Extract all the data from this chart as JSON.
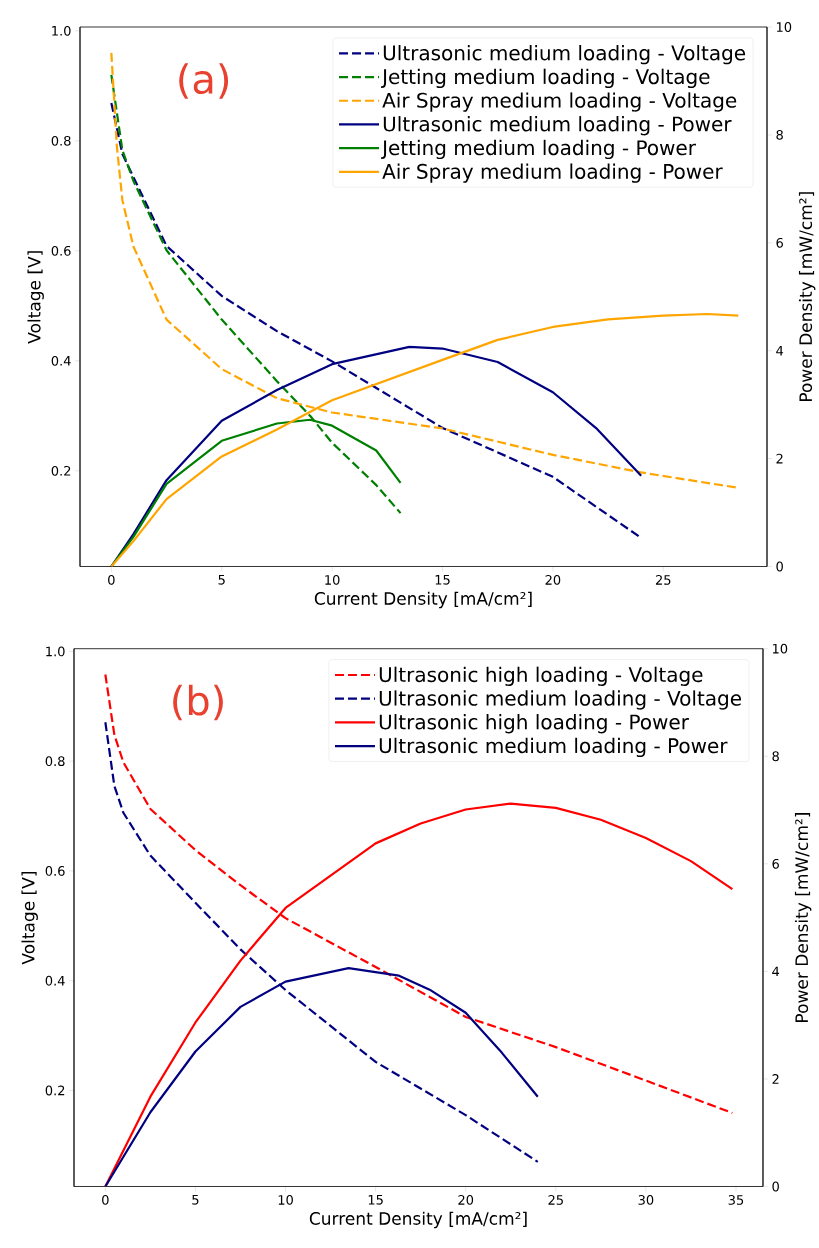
{
  "chart_data": [
    {
      "type": "line",
      "xlabel": "Current Density [mA/cm²]",
      "ylabel": "Voltage [V]",
      "y2label": "Power Density [mW/cm²]",
      "annotations": [
        "(a)"
      ],
      "xlim": [
        -1.42,
        29.7
      ],
      "ylim": [
        0.026,
        1.007
      ],
      "y2lim": [
        0,
        10
      ],
      "xticks": [
        0,
        5,
        10,
        15,
        20,
        25
      ],
      "yticks": [
        {
          "value": 0.2,
          "label": "0.2"
        },
        {
          "value": 0.4,
          "label": "0.4"
        },
        {
          "value": 0.6,
          "label": "0.6"
        },
        {
          "value": 0.8,
          "label": "0.8"
        },
        {
          "value": 1.0,
          "label": "1.0"
        }
      ],
      "y2ticks": [
        0,
        2,
        4,
        6,
        8,
        10
      ],
      "legend": "top right",
      "series": [
        {
          "name": "Ultrasonic medium loading - Voltage",
          "color": "#000080",
          "axis": "y",
          "line_style": "dashed",
          "x": [
            0,
            0.5,
            1,
            2.5,
            5,
            7.5,
            10,
            15,
            20,
            24
          ],
          "values": [
            0.869,
            0.776,
            0.734,
            0.609,
            0.518,
            0.454,
            0.399,
            0.278,
            0.189,
            0.078
          ]
        },
        {
          "name": "Jetting medium loading - Voltage",
          "color": "#008000",
          "axis": "y",
          "line_style": "dashed",
          "x": [
            0,
            0.5,
            1,
            2.5,
            5,
            7.5,
            9,
            10,
            12,
            13.1
          ],
          "values": [
            0.92,
            0.783,
            0.727,
            0.601,
            0.475,
            0.363,
            0.3,
            0.251,
            0.174,
            0.123
          ]
        },
        {
          "name": "Air Spray medium loading - Voltage",
          "color": "#ffa500",
          "axis": "y",
          "line_style": "dashed",
          "x": [
            0,
            0.25,
            0.5,
            1,
            2.5,
            5,
            7.5,
            10,
            15,
            20,
            24,
            28.4
          ],
          "values": [
            0.96,
            0.79,
            0.692,
            0.608,
            0.475,
            0.385,
            0.332,
            0.306,
            0.277,
            0.229,
            0.197,
            0.169
          ]
        },
        {
          "name": "Ultrasonic medium loading - Power",
          "color": "#000080",
          "axis": "y2",
          "line_style": "solid",
          "x": [
            0,
            1,
            2.5,
            5,
            7.5,
            10,
            13.5,
            15,
            17.5,
            20,
            22,
            24
          ],
          "values": [
            0,
            0.6,
            1.6,
            2.7,
            3.27,
            3.75,
            4.07,
            4.04,
            3.79,
            3.23,
            2.55,
            1.68
          ]
        },
        {
          "name": "Jetting medium loading - Power",
          "color": "#008000",
          "axis": "y2",
          "line_style": "solid",
          "x": [
            0,
            1,
            2.5,
            5,
            7.5,
            9,
            10,
            12,
            13.1
          ],
          "values": [
            0,
            0.55,
            1.53,
            2.33,
            2.65,
            2.72,
            2.61,
            2.15,
            1.55
          ]
        },
        {
          "name": "Air Spray medium loading - Power",
          "color": "#ffa500",
          "axis": "y2",
          "line_style": "solid",
          "x": [
            0,
            1,
            2.5,
            5,
            7.5,
            10,
            15,
            17.5,
            20,
            22.5,
            25,
            27,
            28.4
          ],
          "values": [
            0,
            0.47,
            1.25,
            2.04,
            2.54,
            3.08,
            3.83,
            4.2,
            4.44,
            4.58,
            4.65,
            4.68,
            4.65
          ]
        }
      ]
    },
    {
      "type": "line",
      "xlabel": "Current Density [mA/cm²]",
      "ylabel": "Voltage [V]",
      "y2label": "Power Density [mW/cm²]",
      "annotations": [
        "(b)"
      ],
      "xlim": [
        -1.74,
        36.5
      ],
      "ylim": [
        0.025,
        1.005
      ],
      "y2lim": [
        0,
        10
      ],
      "xticks": [
        0,
        5,
        10,
        15,
        20,
        25,
        30,
        35
      ],
      "yticks": [
        {
          "value": 0.2,
          "label": "0.2"
        },
        {
          "value": 0.4,
          "label": "0.4"
        },
        {
          "value": 0.6,
          "label": "0.6"
        },
        {
          "value": 0.8,
          "label": "0.8"
        },
        {
          "value": 1.0,
          "label": "1.0"
        }
      ],
      "y2ticks": [
        0,
        2,
        4,
        6,
        8,
        10
      ],
      "legend": "top right",
      "series": [
        {
          "name": "Ultrasonic high loading - Voltage",
          "color": "#ff0000",
          "axis": "y",
          "line_style": "dashed",
          "x": [
            0,
            0.5,
            1,
            2.5,
            5,
            7.5,
            10,
            15,
            20,
            25,
            30,
            34.8
          ],
          "values": [
            0.958,
            0.848,
            0.798,
            0.713,
            0.638,
            0.574,
            0.514,
            0.425,
            0.334,
            0.279,
            0.218,
            0.159
          ]
        },
        {
          "name": "Ultrasonic medium loading - Voltage",
          "color": "#000080",
          "axis": "y",
          "line_style": "dashed",
          "x": [
            0,
            0.5,
            1,
            2.5,
            5,
            7.5,
            10,
            15,
            20,
            24
          ],
          "values": [
            0.871,
            0.755,
            0.706,
            0.628,
            0.542,
            0.457,
            0.383,
            0.252,
            0.155,
            0.07
          ]
        },
        {
          "name": "Ultrasonic high loading - Power",
          "color": "#ff0000",
          "axis": "y2",
          "line_style": "solid",
          "x": [
            0,
            2.5,
            5,
            7.5,
            10,
            15,
            17.5,
            20,
            22.5,
            25,
            27.5,
            30,
            32.5,
            34.8
          ],
          "values": [
            0,
            1.67,
            3.05,
            4.2,
            5.18,
            6.38,
            6.75,
            7.01,
            7.12,
            7.04,
            6.82,
            6.48,
            6.05,
            5.53
          ]
        },
        {
          "name": "Ultrasonic medium loading - Power",
          "color": "#000080",
          "axis": "y2",
          "line_style": "solid",
          "x": [
            0,
            2.5,
            5,
            7.5,
            10,
            13.5,
            16.3,
            18,
            20,
            22,
            24
          ],
          "values": [
            0,
            1.38,
            2.51,
            3.34,
            3.81,
            4.06,
            3.92,
            3.66,
            3.23,
            2.49,
            1.67
          ]
        }
      ]
    }
  ]
}
